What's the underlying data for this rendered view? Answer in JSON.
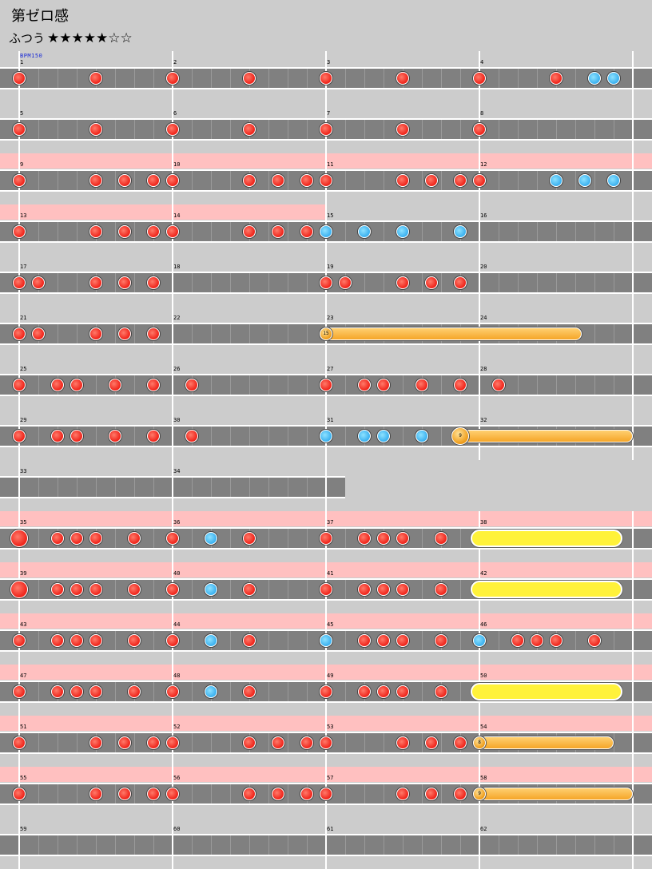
{
  "title": "第ゼロ感",
  "difficulty": {
    "label": "ふつう",
    "stars": "★★★★★☆☆"
  },
  "bpm_label": "BPM150",
  "colors": {
    "don": "#f0281e",
    "ka": "#3fb3f0",
    "roll": "#f5a528",
    "big_roll": "#fff23a",
    "gogo_band": "#ffc0c0",
    "lane": "#808080",
    "background": "#cccccc"
  },
  "rows": [
    {
      "nums": [
        "1",
        "2",
        "3",
        "4"
      ],
      "measures": 4,
      "notes": [
        [
          0,
          0,
          "d"
        ],
        [
          0,
          8,
          "d"
        ],
        [
          1,
          0,
          "d"
        ],
        [
          1,
          8,
          "d"
        ],
        [
          2,
          0,
          "d"
        ],
        [
          2,
          8,
          "d"
        ],
        [
          3,
          0,
          "d"
        ],
        [
          3,
          8,
          "d"
        ],
        [
          3,
          12,
          "k"
        ],
        [
          3,
          14,
          "k"
        ]
      ]
    },
    {
      "nums": [
        "5",
        "6",
        "7",
        "8"
      ],
      "measures": 4,
      "notes": [
        [
          0,
          0,
          "d"
        ],
        [
          0,
          8,
          "d"
        ],
        [
          1,
          0,
          "d"
        ],
        [
          1,
          8,
          "d"
        ],
        [
          2,
          0,
          "d"
        ],
        [
          2,
          8,
          "d"
        ],
        [
          3,
          0,
          "d"
        ]
      ]
    },
    {
      "nums": [
        "9",
        "10",
        "11",
        "12"
      ],
      "measures": 4,
      "gogo": [
        0,
        4
      ],
      "notes": [
        [
          0,
          0,
          "d"
        ],
        [
          0,
          8,
          "d"
        ],
        [
          0,
          11,
          "d"
        ],
        [
          0,
          14,
          "d"
        ],
        [
          1,
          0,
          "d"
        ],
        [
          1,
          8,
          "d"
        ],
        [
          1,
          11,
          "d"
        ],
        [
          1,
          14,
          "d"
        ],
        [
          2,
          0,
          "d"
        ],
        [
          2,
          8,
          "d"
        ],
        [
          2,
          11,
          "d"
        ],
        [
          2,
          14,
          "d"
        ],
        [
          3,
          0,
          "d"
        ],
        [
          3,
          8,
          "k"
        ],
        [
          3,
          11,
          "k"
        ],
        [
          3,
          14,
          "k"
        ]
      ]
    },
    {
      "nums": [
        "13",
        "14",
        "15",
        "16"
      ],
      "measures": 4,
      "gogo": [
        0,
        2
      ],
      "notes": [
        [
          0,
          0,
          "d"
        ],
        [
          0,
          8,
          "d"
        ],
        [
          0,
          11,
          "d"
        ],
        [
          0,
          14,
          "d"
        ],
        [
          1,
          0,
          "d"
        ],
        [
          1,
          8,
          "d"
        ],
        [
          1,
          11,
          "d"
        ],
        [
          1,
          14,
          "d"
        ],
        [
          2,
          0,
          "k"
        ],
        [
          2,
          4,
          "k"
        ],
        [
          2,
          8,
          "k"
        ],
        [
          2,
          14,
          "k"
        ]
      ]
    },
    {
      "nums": [
        "17",
        "18",
        "19",
        "20"
      ],
      "measures": 4,
      "notes": [
        [
          0,
          0,
          "d"
        ],
        [
          0,
          2,
          "d"
        ],
        [
          0,
          8,
          "d"
        ],
        [
          0,
          11,
          "d"
        ],
        [
          0,
          14,
          "d"
        ],
        [
          2,
          0,
          "d"
        ],
        [
          2,
          2,
          "d"
        ],
        [
          2,
          8,
          "d"
        ],
        [
          2,
          11,
          "d"
        ],
        [
          2,
          14,
          "d"
        ]
      ]
    },
    {
      "nums": [
        "21",
        "22",
        "23",
        "24"
      ],
      "measures": 4,
      "notes": [
        [
          0,
          0,
          "d"
        ],
        [
          0,
          2,
          "d"
        ],
        [
          0,
          8,
          "d"
        ],
        [
          0,
          11,
          "d"
        ],
        [
          0,
          14,
          "d"
        ]
      ],
      "rolls": [
        [
          2,
          0,
          3,
          10,
          "15"
        ]
      ]
    },
    {
      "nums": [
        "25",
        "26",
        "27",
        "28"
      ],
      "measures": 4,
      "notes": [
        [
          0,
          0,
          "d"
        ],
        [
          0,
          4,
          "d"
        ],
        [
          0,
          6,
          "d"
        ],
        [
          0,
          10,
          "d"
        ],
        [
          0,
          14,
          "d"
        ],
        [
          1,
          2,
          "d"
        ],
        [
          2,
          0,
          "d"
        ],
        [
          2,
          4,
          "d"
        ],
        [
          2,
          6,
          "d"
        ],
        [
          2,
          10,
          "d"
        ],
        [
          2,
          14,
          "d"
        ],
        [
          3,
          2,
          "d"
        ]
      ]
    },
    {
      "nums": [
        "29",
        "30",
        "31",
        "32"
      ],
      "measures": 4,
      "notes": [
        [
          0,
          0,
          "d"
        ],
        [
          0,
          4,
          "d"
        ],
        [
          0,
          6,
          "d"
        ],
        [
          0,
          10,
          "d"
        ],
        [
          0,
          14,
          "d"
        ],
        [
          1,
          2,
          "d"
        ],
        [
          2,
          0,
          "k"
        ],
        [
          2,
          4,
          "k"
        ],
        [
          2,
          6,
          "k"
        ],
        [
          2,
          10,
          "k"
        ]
      ],
      "balloons": [
        [
          2,
          14,
          3,
          16,
          "9",
          2
        ]
      ]
    },
    {
      "nums": [
        "33",
        "34"
      ],
      "measures": 2,
      "notes": []
    },
    {
      "nums": [
        "35",
        "36",
        "37",
        "38"
      ],
      "measures": 4,
      "gogo": [
        0,
        4
      ],
      "notes": [
        [
          0,
          0,
          "D"
        ],
        [
          0,
          4,
          "d"
        ],
        [
          0,
          6,
          "d"
        ],
        [
          0,
          8,
          "d"
        ],
        [
          0,
          12,
          "d"
        ],
        [
          1,
          0,
          "d"
        ],
        [
          1,
          4,
          "k"
        ],
        [
          1,
          8,
          "d"
        ],
        [
          2,
          0,
          "d"
        ],
        [
          2,
          4,
          "d"
        ],
        [
          2,
          6,
          "d"
        ],
        [
          2,
          8,
          "d"
        ],
        [
          2,
          12,
          "d"
        ]
      ],
      "bigrolls": [
        [
          3,
          0,
          3,
          14
        ]
      ]
    },
    {
      "nums": [
        "39",
        "40",
        "41",
        "42"
      ],
      "measures": 4,
      "gogo": [
        0,
        4
      ],
      "notes": [
        [
          0,
          0,
          "D"
        ],
        [
          0,
          4,
          "d"
        ],
        [
          0,
          6,
          "d"
        ],
        [
          0,
          8,
          "d"
        ],
        [
          0,
          12,
          "d"
        ],
        [
          1,
          0,
          "d"
        ],
        [
          1,
          4,
          "k"
        ],
        [
          1,
          8,
          "d"
        ],
        [
          2,
          0,
          "d"
        ],
        [
          2,
          4,
          "d"
        ],
        [
          2,
          6,
          "d"
        ],
        [
          2,
          8,
          "d"
        ],
        [
          2,
          12,
          "d"
        ]
      ],
      "bigrolls": [
        [
          3,
          0,
          3,
          14
        ]
      ]
    },
    {
      "nums": [
        "43",
        "44",
        "45",
        "46"
      ],
      "measures": 4,
      "gogo": [
        0,
        4
      ],
      "notes": [
        [
          0,
          0,
          "d"
        ],
        [
          0,
          4,
          "d"
        ],
        [
          0,
          6,
          "d"
        ],
        [
          0,
          8,
          "d"
        ],
        [
          0,
          12,
          "d"
        ],
        [
          1,
          0,
          "d"
        ],
        [
          1,
          4,
          "k"
        ],
        [
          1,
          8,
          "d"
        ],
        [
          2,
          0,
          "k"
        ],
        [
          2,
          4,
          "d"
        ],
        [
          2,
          6,
          "d"
        ],
        [
          2,
          8,
          "d"
        ],
        [
          2,
          12,
          "d"
        ],
        [
          3,
          0,
          "k"
        ],
        [
          3,
          4,
          "d"
        ],
        [
          3,
          6,
          "d"
        ],
        [
          3,
          8,
          "d"
        ],
        [
          3,
          12,
          "d"
        ]
      ]
    },
    {
      "nums": [
        "47",
        "48",
        "49",
        "50"
      ],
      "measures": 4,
      "gogo": [
        0,
        4
      ],
      "notes": [
        [
          0,
          0,
          "d"
        ],
        [
          0,
          4,
          "d"
        ],
        [
          0,
          6,
          "d"
        ],
        [
          0,
          8,
          "d"
        ],
        [
          0,
          12,
          "d"
        ],
        [
          1,
          0,
          "d"
        ],
        [
          1,
          4,
          "k"
        ],
        [
          1,
          8,
          "d"
        ],
        [
          2,
          0,
          "d"
        ],
        [
          2,
          4,
          "d"
        ],
        [
          2,
          6,
          "d"
        ],
        [
          2,
          8,
          "d"
        ],
        [
          2,
          12,
          "d"
        ]
      ],
      "bigrolls": [
        [
          3,
          0,
          3,
          14
        ]
      ]
    },
    {
      "nums": [
        "51",
        "52",
        "53",
        "54"
      ],
      "measures": 4,
      "gogo": [
        0,
        4
      ],
      "notes": [
        [
          0,
          0,
          "d"
        ],
        [
          0,
          8,
          "d"
        ],
        [
          0,
          11,
          "d"
        ],
        [
          0,
          14,
          "d"
        ],
        [
          1,
          0,
          "d"
        ],
        [
          1,
          8,
          "d"
        ],
        [
          1,
          11,
          "d"
        ],
        [
          1,
          14,
          "d"
        ],
        [
          2,
          0,
          "d"
        ],
        [
          2,
          8,
          "d"
        ],
        [
          2,
          11,
          "d"
        ],
        [
          2,
          14,
          "d"
        ]
      ],
      "balloons": [
        [
          3,
          0,
          3,
          14,
          "8",
          1
        ]
      ]
    },
    {
      "nums": [
        "55",
        "56",
        "57",
        "58"
      ],
      "measures": 4,
      "gogo": [
        0,
        4
      ],
      "notes": [
        [
          0,
          0,
          "d"
        ],
        [
          0,
          8,
          "d"
        ],
        [
          0,
          11,
          "d"
        ],
        [
          0,
          14,
          "d"
        ],
        [
          1,
          0,
          "d"
        ],
        [
          1,
          8,
          "d"
        ],
        [
          1,
          11,
          "d"
        ],
        [
          1,
          14,
          "d"
        ],
        [
          2,
          0,
          "d"
        ],
        [
          2,
          8,
          "d"
        ],
        [
          2,
          11,
          "d"
        ],
        [
          2,
          14,
          "d"
        ]
      ],
      "balloons": [
        [
          3,
          0,
          3,
          16,
          "9",
          1
        ]
      ]
    },
    {
      "nums": [
        "59",
        "60",
        "61",
        "62"
      ],
      "measures": 4,
      "notes": []
    }
  ]
}
